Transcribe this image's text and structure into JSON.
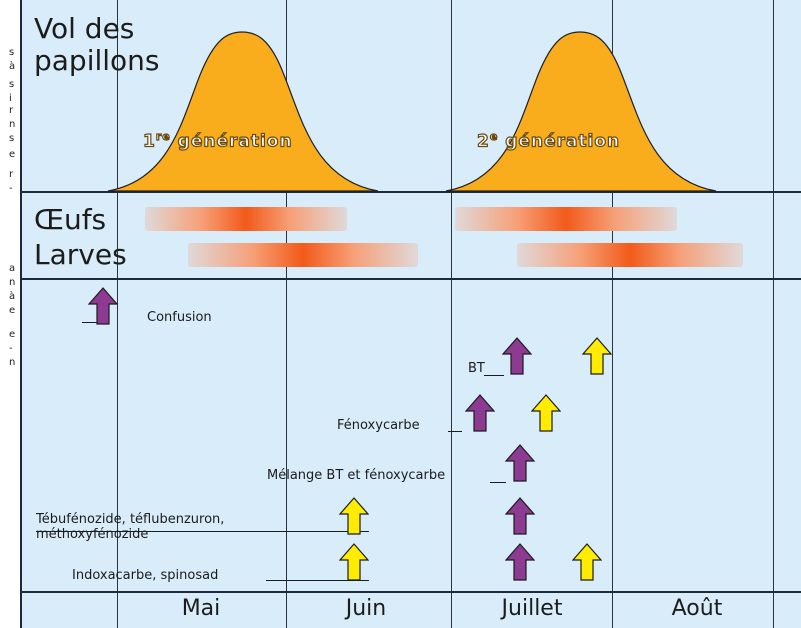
{
  "sections": {
    "flight_label_line1": "Vol des",
    "flight_label_line2": "papillons",
    "eggs_label": "Œufs",
    "larvae_label": "Larves"
  },
  "generations": {
    "first_num": "1",
    "first_sup": "re",
    "first_text": " génération",
    "second_num": "2",
    "second_sup": "e",
    "second_text": " génération"
  },
  "months": [
    "Mai",
    "Juin",
    "Juillet",
    "Août"
  ],
  "treatments": {
    "confusion": "Confusion",
    "bt": "BT",
    "fenoxycarbe": "Fénoxycarbe",
    "melange": "Mélange BT et fénoxycarbe",
    "tebu_line1": "Tébufénozide, téflubenzuron,",
    "tebu_line2": "méthoxyfénozide",
    "indoxacarbe": "Indoxacarbe, spinosad"
  },
  "colors": {
    "panel_bg": "#d8ecfa",
    "curve_fill": "#f9ad1c",
    "bar_core": "#f25a1a",
    "arrow_purple": "#8c3a92",
    "arrow_yellow": "#ffec00"
  },
  "margin_text": [
    "s",
    "à",
    "s",
    "i",
    "r",
    "n",
    "s",
    "e",
    "r",
    "-",
    "a",
    "n",
    "à",
    "e",
    "e",
    "-",
    "n"
  ]
}
